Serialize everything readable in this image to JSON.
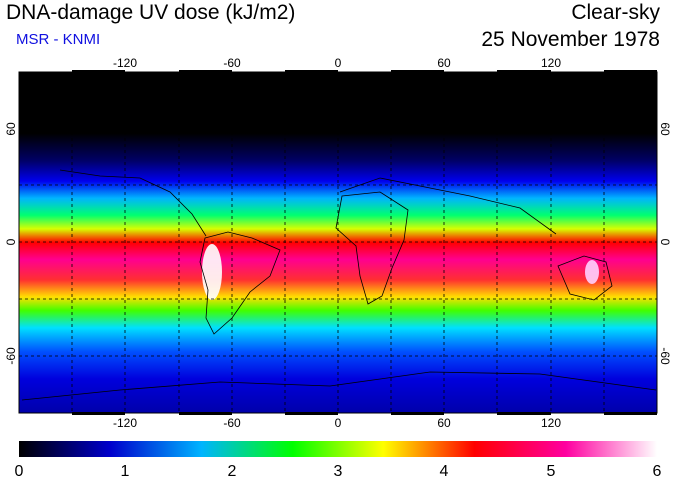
{
  "header": {
    "title": "DNA-damage UV dose (kJ/m2)",
    "credit": "MSR - KNMI",
    "condition": "Clear-sky",
    "date": "25 November 1978"
  },
  "axes": {
    "lon_ticks": [
      "-120",
      "-60",
      "0",
      "60",
      "120"
    ],
    "lat_ticks": [
      "60",
      "0",
      "-60"
    ]
  },
  "colorbar": {
    "labels": [
      "0",
      "1",
      "2",
      "3",
      "4",
      "5",
      "6"
    ],
    "stops": [
      "#000000",
      "#0000cc",
      "#00b4ff",
      "#00ff00",
      "#ffff00",
      "#ff0000",
      "#ff00a0",
      "#ffffff"
    ]
  }
}
